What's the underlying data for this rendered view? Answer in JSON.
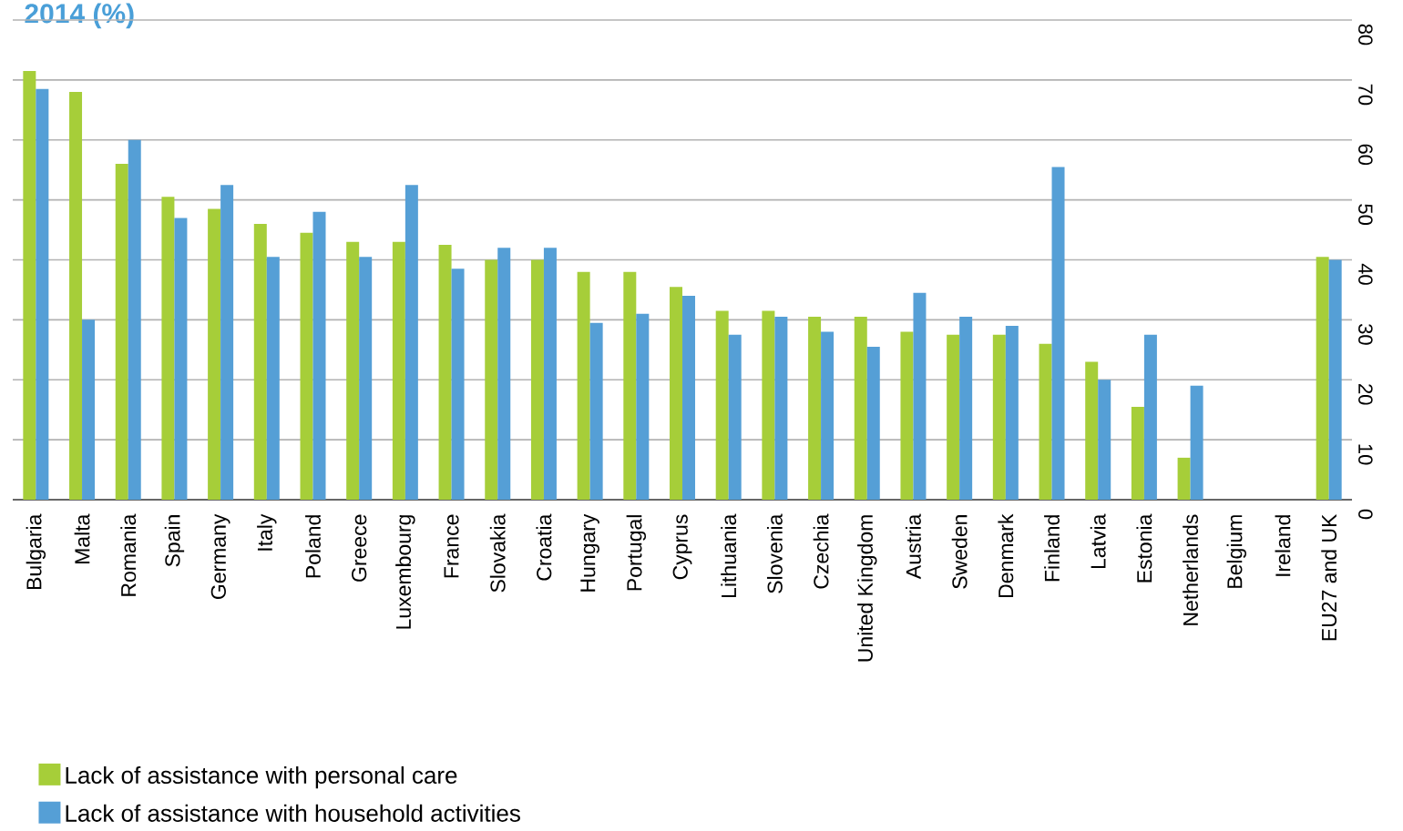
{
  "chart_data": {
    "type": "bar",
    "title": "2014 (%)",
    "categories": [
      "Bulgaria",
      "Malta",
      "Romania",
      "Spain",
      "Germany",
      "Italy",
      "Poland",
      "Greece",
      "Luxembourg",
      "France",
      "Slovakia",
      "Croatia",
      "Hungary",
      "Portugal",
      "Cyprus",
      "Lithuania",
      "Slovenia",
      "Czechia",
      "United Kingdom",
      "Austria",
      "Sweden",
      "Denmark",
      "Finland",
      "Latvia",
      "Estonia",
      "Netherlands",
      "Belgium",
      "Ireland",
      "EU27 and UK"
    ],
    "series": [
      {
        "name": "Lack of assistance with personal care",
        "color": "#a6ce39",
        "values": [
          71.5,
          68,
          56,
          50.5,
          48.5,
          46,
          44.5,
          43,
          43,
          42.5,
          40,
          40,
          38,
          38,
          35.5,
          31.5,
          31.5,
          30.5,
          30.5,
          28,
          27.5,
          27.5,
          26,
          23,
          15.5,
          7,
          null,
          null,
          40.5
        ]
      },
      {
        "name": "Lack of assistance with household activities",
        "color": "#559fd6",
        "values": [
          68.5,
          30,
          60,
          47,
          52.5,
          40.5,
          48,
          40.5,
          52.5,
          38.5,
          42,
          42,
          29.5,
          31,
          34,
          27.5,
          30.5,
          28,
          25.5,
          34.5,
          30.5,
          29,
          55.5,
          20,
          27.5,
          19,
          null,
          null,
          40
        ]
      }
    ],
    "ylim": [
      0,
      80
    ],
    "yticks": [
      0,
      10,
      20,
      30,
      40,
      50,
      60,
      70,
      80
    ],
    "grid": "y",
    "legend": "bottom"
  }
}
